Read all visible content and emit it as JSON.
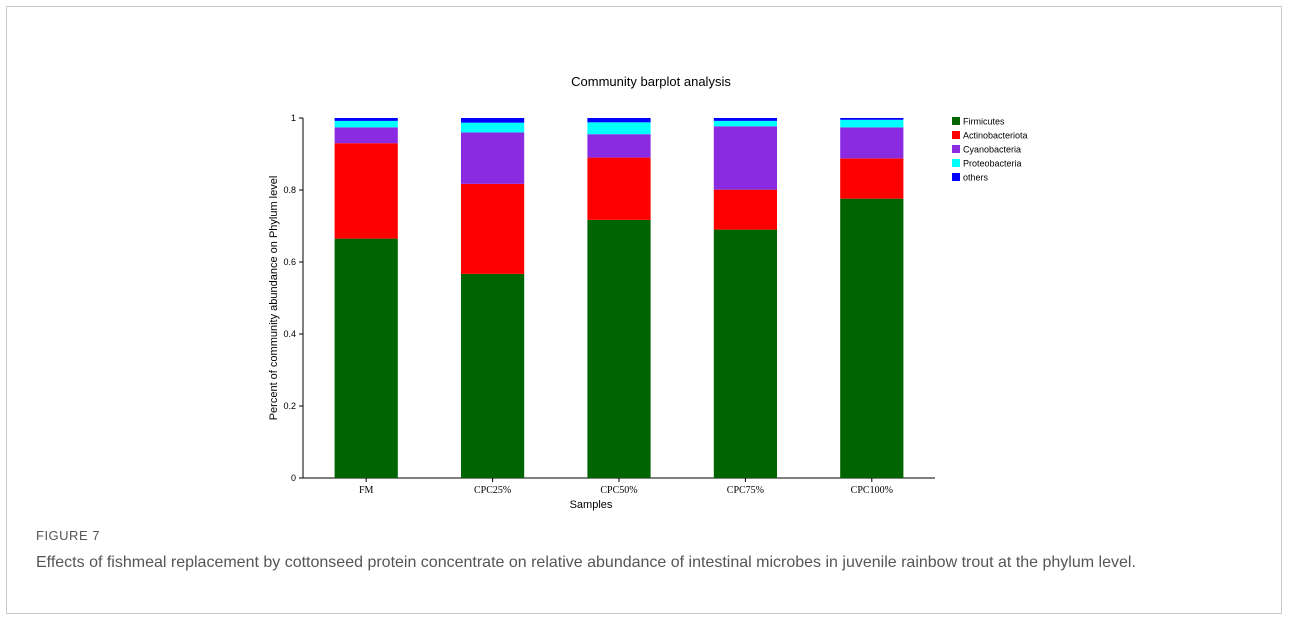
{
  "figure": {
    "label": "FIGURE 7",
    "caption": "Effects of fishmeal replacement by cottonseed protein concentrate on relative abundance of intestinal microbes in juvenile rainbow trout at the phylum level."
  },
  "chart_data": {
    "type": "bar",
    "stacked": true,
    "title": "Community barplot analysis",
    "xlabel": "Samples",
    "ylabel": "Percent of community abundance on Phylum level",
    "ylim": [
      0,
      1
    ],
    "yticks": [
      "0",
      "0.2",
      "0.4",
      "0.6",
      "0.8",
      "1"
    ],
    "legend_position": "right",
    "categories": [
      "FM",
      "CPC25%",
      "CPC50%",
      "CPC75%",
      "CPC100%"
    ],
    "series": [
      {
        "name": "Firmicutes",
        "color": "#006400",
        "values": [
          0.665,
          0.567,
          0.717,
          0.69,
          0.776
        ]
      },
      {
        "name": "Actinobacteriota",
        "color": "#ff0000",
        "values": [
          0.265,
          0.25,
          0.173,
          0.111,
          0.112
        ]
      },
      {
        "name": "Cyanobacteria",
        "color": "#8a2be2",
        "values": [
          0.044,
          0.143,
          0.065,
          0.176,
          0.086
        ]
      },
      {
        "name": "Proteobacteria",
        "color": "#00ffff",
        "values": [
          0.018,
          0.027,
          0.033,
          0.015,
          0.021
        ]
      },
      {
        "name": "others",
        "color": "#0000ff",
        "values": [
          0.008,
          0.013,
          0.012,
          0.008,
          0.005
        ]
      }
    ]
  }
}
